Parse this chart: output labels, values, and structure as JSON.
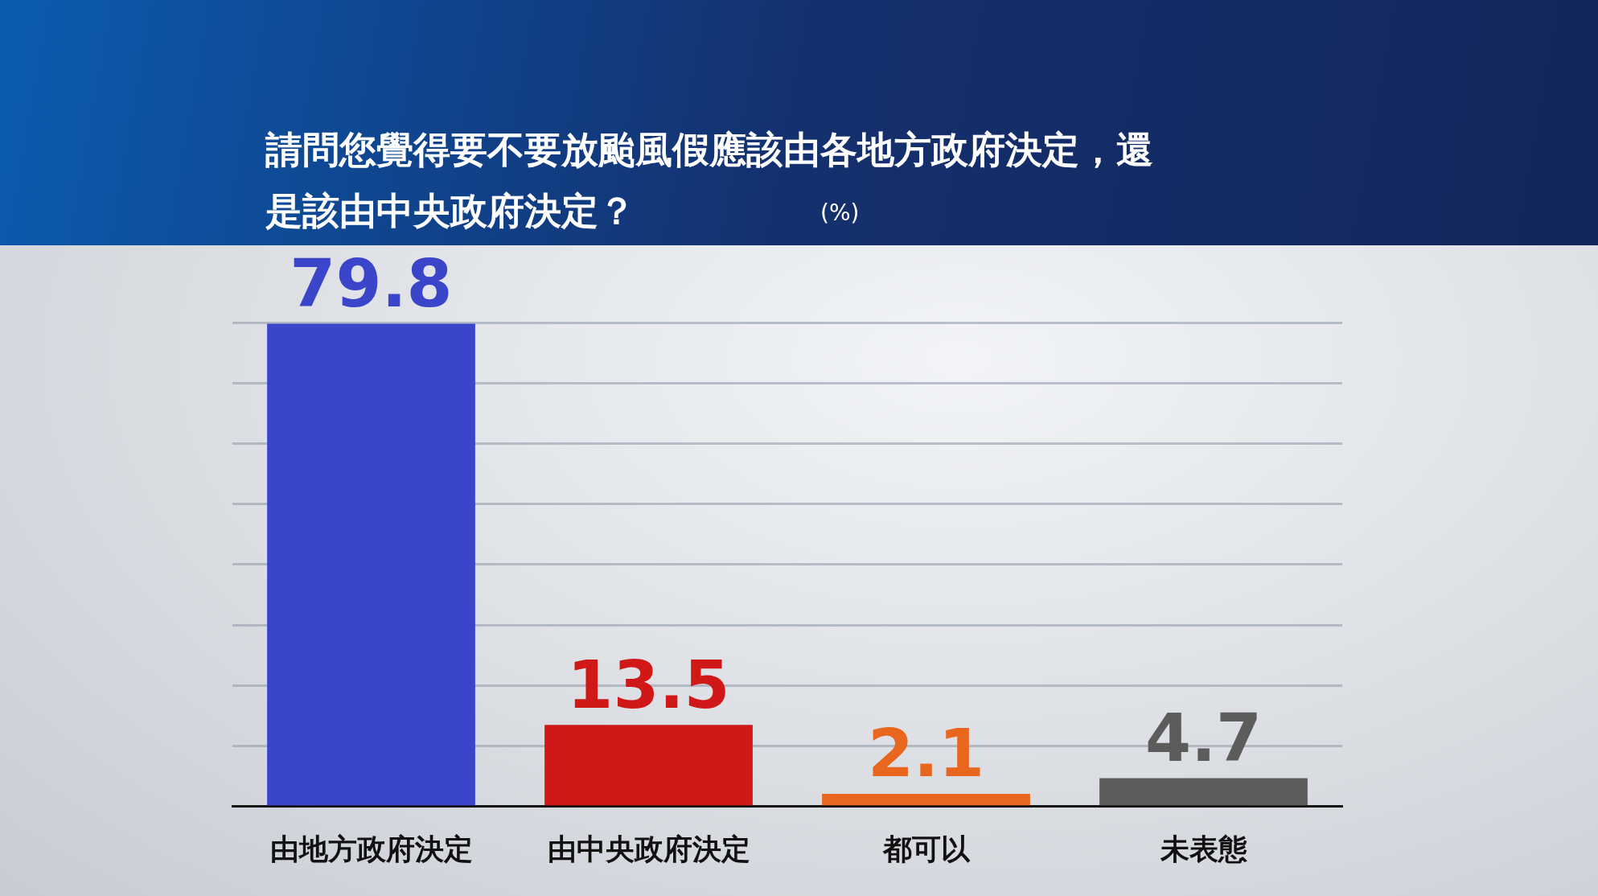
{
  "chart_data": {
    "type": "bar",
    "title": "請問您覺得要不要放颱風假應該由各地方政府決定，還是該由中央政府決定？",
    "ylabel": "(%)",
    "categories": [
      "由地方政府決定",
      "由中央政府決定",
      "都可以",
      "未表態"
    ],
    "values": [
      79.8,
      13.5,
      2.1,
      4.7
    ],
    "colors": [
      "#3b45c9",
      "#d01818",
      "#e8661e",
      "#5c5c5c"
    ],
    "ylim": [
      0,
      80
    ],
    "yticks": [
      {
        "value": 0,
        "label": null
      },
      {
        "value": 10,
        "label": null
      },
      {
        "value": 20,
        "label": null
      },
      {
        "value": 30,
        "label": null
      },
      {
        "value": 40,
        "label": null
      },
      {
        "value": 50,
        "label": null
      },
      {
        "value": 60,
        "label": null
      },
      {
        "value": 70,
        "label": null
      },
      {
        "value": 80,
        "label": null
      }
    ],
    "grid": "y",
    "legend": false,
    "tick_labels": "x",
    "data_labels": true
  }
}
